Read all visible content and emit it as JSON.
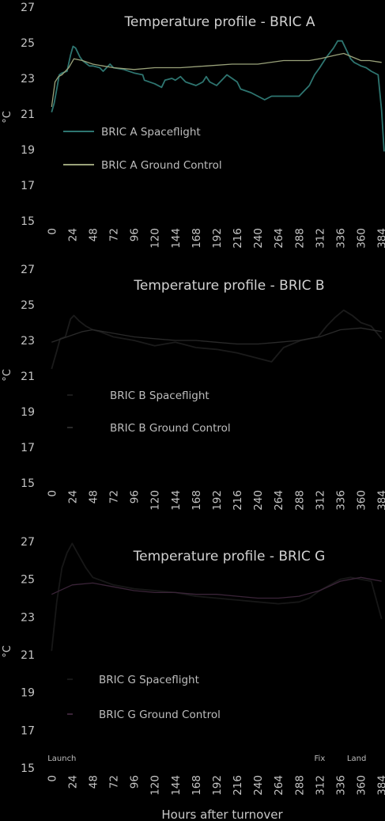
{
  "figure": {
    "xlabel": "Hours after turnover",
    "ylabel": "°C"
  },
  "chart_data": [
    {
      "type": "line",
      "title": "Temperature profile - BRIC A",
      "ylim": [
        15,
        27
      ],
      "yticks": [
        15,
        17,
        19,
        21,
        23,
        25,
        27
      ],
      "xlim": [
        -3,
        388
      ],
      "xticks": [
        0,
        24,
        48,
        72,
        96,
        120,
        144,
        168,
        192,
        216,
        240,
        264,
        288,
        312,
        336,
        360,
        384
      ],
      "grid": false,
      "legend": "upper-left",
      "annotations": [],
      "series": [
        {
          "name": "BRIC A  Spaceflight",
          "color": "#2e7570",
          "x": [
            0,
            3,
            6,
            9,
            12,
            18,
            22,
            25,
            28,
            33,
            36,
            44,
            48,
            56,
            60,
            64,
            68,
            72,
            84,
            96,
            106,
            108,
            120,
            128,
            132,
            140,
            144,
            150,
            156,
            168,
            176,
            180,
            184,
            192,
            200,
            204,
            210,
            216,
            220,
            232,
            240,
            248,
            256,
            264,
            276,
            288,
            300,
            306,
            312,
            320,
            328,
            333,
            338,
            343,
            348,
            352,
            356,
            360,
            366,
            372,
            380,
            384,
            387
          ],
          "y": [
            21.1,
            21.6,
            22.4,
            23.2,
            23.3,
            23.4,
            24.3,
            24.8,
            24.7,
            24.2,
            24.0,
            23.7,
            23.7,
            23.6,
            23.4,
            23.6,
            23.8,
            23.6,
            23.5,
            23.3,
            23.2,
            22.9,
            22.7,
            22.5,
            22.9,
            23.0,
            22.9,
            23.1,
            22.8,
            22.6,
            22.8,
            23.1,
            22.8,
            22.6,
            23.0,
            23.2,
            23.0,
            22.8,
            22.4,
            22.2,
            22.0,
            21.8,
            22.0,
            22.0,
            22.0,
            22.0,
            22.6,
            23.2,
            23.6,
            24.2,
            24.7,
            25.1,
            25.1,
            24.6,
            24.1,
            23.9,
            23.8,
            23.7,
            23.6,
            23.4,
            23.2,
            21.2,
            18.9
          ]
        },
        {
          "name": "BRIC A Ground Control",
          "color": "#9aa27a",
          "x": [
            0,
            4,
            8,
            12,
            20,
            26,
            36,
            48,
            60,
            72,
            96,
            120,
            150,
            180,
            210,
            240,
            270,
            300,
            312,
            330,
            340,
            350,
            360,
            370,
            384
          ],
          "y": [
            21.4,
            22.8,
            23.1,
            23.2,
            23.6,
            24.1,
            24.0,
            23.8,
            23.7,
            23.6,
            23.5,
            23.6,
            23.6,
            23.7,
            23.8,
            23.8,
            24.0,
            24.0,
            24.1,
            24.3,
            24.4,
            24.2,
            24.0,
            24.0,
            23.9
          ]
        }
      ]
    },
    {
      "type": "line",
      "title": "Temperature profile - BRIC B",
      "ylim": [
        15,
        27
      ],
      "yticks": [
        15,
        17,
        19,
        21,
        23,
        25,
        27
      ],
      "xlim": [
        -3,
        388
      ],
      "xticks": [
        0,
        24,
        48,
        72,
        96,
        120,
        144,
        168,
        192,
        216,
        240,
        264,
        288,
        312,
        336,
        360,
        384
      ],
      "grid": false,
      "legend": "upper-left",
      "annotations": [],
      "series": [
        {
          "name": "BRIC B Spaceflight",
          "color": "#1b1b1b",
          "x": [
            0,
            6,
            10,
            16,
            22,
            26,
            32,
            40,
            48,
            56,
            72,
            96,
            120,
            144,
            168,
            192,
            216,
            240,
            256,
            270,
            290,
            310,
            320,
            330,
            340,
            350,
            360,
            372,
            384
          ],
          "y": [
            21.4,
            22.4,
            23.1,
            23.2,
            24.2,
            24.4,
            24.1,
            23.8,
            23.6,
            23.5,
            23.2,
            23.0,
            22.7,
            22.9,
            22.6,
            22.5,
            22.3,
            22.0,
            21.8,
            22.6,
            23.0,
            23.2,
            23.8,
            24.3,
            24.7,
            24.4,
            24.0,
            23.8,
            23.1
          ]
        },
        {
          "name": "BRIC B Ground Control",
          "color": "#2a2a2a",
          "x": [
            0,
            12,
            24,
            36,
            48,
            72,
            96,
            120,
            144,
            168,
            192,
            216,
            240,
            264,
            288,
            312,
            336,
            360,
            384
          ],
          "y": [
            22.9,
            23.1,
            23.3,
            23.5,
            23.6,
            23.4,
            23.2,
            23.1,
            23.0,
            23.0,
            22.9,
            22.8,
            22.8,
            22.9,
            23.0,
            23.2,
            23.6,
            23.7,
            23.5
          ]
        }
      ]
    },
    {
      "type": "line",
      "title": "Temperature profile - BRIC G",
      "ylim": [
        15,
        27
      ],
      "yticks": [
        15,
        17,
        19,
        21,
        23,
        25,
        27
      ],
      "xlim": [
        -3,
        388
      ],
      "xticks": [
        0,
        24,
        48,
        72,
        96,
        120,
        144,
        168,
        192,
        216,
        240,
        264,
        288,
        312,
        336,
        360,
        384
      ],
      "grid": false,
      "legend": "upper-left",
      "annotations": [
        {
          "text": "Launch",
          "x": 12
        },
        {
          "text": "Fix",
          "x": 312
        },
        {
          "text": "Land",
          "x": 355
        }
      ],
      "series": [
        {
          "name": "BRIC G Spaceflight",
          "color": "#171717",
          "x": [
            0,
            6,
            12,
            18,
            24,
            30,
            40,
            48,
            60,
            72,
            96,
            120,
            144,
            168,
            192,
            216,
            240,
            264,
            288,
            300,
            312,
            324,
            336,
            348,
            360,
            372,
            384
          ],
          "y": [
            21.2,
            23.8,
            25.6,
            26.4,
            26.9,
            26.4,
            25.6,
            25.1,
            24.9,
            24.7,
            24.5,
            24.4,
            24.3,
            24.1,
            24.0,
            23.9,
            23.8,
            23.7,
            23.8,
            24.0,
            24.4,
            24.7,
            25.0,
            25.1,
            25.0,
            24.9,
            22.9
          ]
        },
        {
          "name": "BRIC G Ground Control",
          "color": "#3a2438",
          "x": [
            0,
            24,
            48,
            72,
            96,
            120,
            144,
            168,
            192,
            216,
            240,
            264,
            288,
            312,
            336,
            360,
            384
          ],
          "y": [
            24.2,
            24.7,
            24.8,
            24.6,
            24.4,
            24.3,
            24.3,
            24.2,
            24.2,
            24.1,
            24.0,
            24.0,
            24.1,
            24.4,
            24.9,
            25.1,
            24.9
          ]
        }
      ]
    }
  ]
}
